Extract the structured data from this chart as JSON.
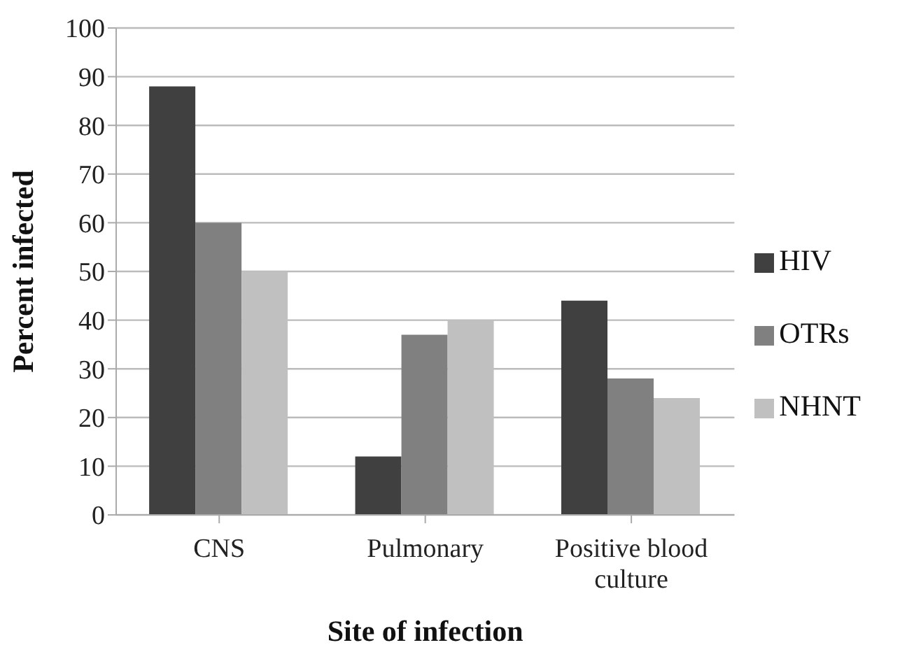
{
  "chart_data": {
    "type": "bar",
    "xlabel": "Site of infection",
    "ylabel": "Percent infected",
    "categories": [
      "CNS",
      "Pulmonary",
      "Positive blood culture"
    ],
    "series": [
      {
        "name": "HIV",
        "color": "#404040",
        "values": [
          88,
          12,
          44
        ]
      },
      {
        "name": "OTRs",
        "color": "#808080",
        "values": [
          60,
          37,
          28
        ]
      },
      {
        "name": "NHNT",
        "color": "#c0c0c0",
        "values": [
          50,
          40,
          24
        ]
      }
    ],
    "ylim": [
      0,
      100
    ],
    "yticks": [
      0,
      10,
      20,
      30,
      40,
      50,
      60,
      70,
      80,
      90,
      100
    ],
    "grid": "y",
    "legend": "right"
  }
}
